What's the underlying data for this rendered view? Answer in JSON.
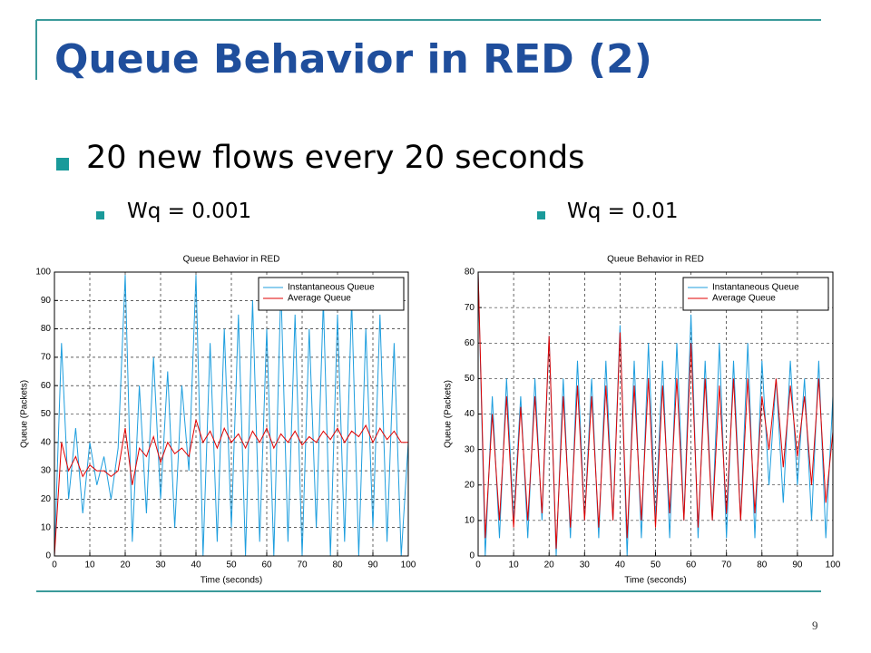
{
  "slide": {
    "title": "Queue Behavior in RED (2)",
    "bullet": "20 new flows every 20 seconds",
    "sub_bullets": [
      "Wq = 0.001",
      "Wq = 0.01"
    ],
    "page_number": "9"
  },
  "chart_data": [
    {
      "type": "line",
      "title": "Queue Behavior in RED",
      "x_label": "Time (seconds)",
      "y_label": "Queue (Packets)",
      "x": [
        0,
        2,
        4,
        6,
        8,
        10,
        12,
        14,
        16,
        18,
        20,
        22,
        24,
        26,
        28,
        30,
        32,
        34,
        36,
        38,
        40,
        42,
        44,
        46,
        48,
        50,
        52,
        54,
        56,
        58,
        60,
        62,
        64,
        66,
        68,
        70,
        72,
        74,
        76,
        78,
        80,
        82,
        84,
        86,
        88,
        90,
        92,
        94,
        96,
        98,
        100
      ],
      "series": [
        {
          "name": "Instantaneous Queue",
          "color": "#1e9ede",
          "values": [
            0,
            75,
            20,
            45,
            15,
            40,
            25,
            35,
            20,
            38,
            99,
            5,
            60,
            15,
            70,
            20,
            65,
            10,
            60,
            30,
            99,
            0,
            75,
            5,
            80,
            10,
            85,
            0,
            90,
            5,
            80,
            0,
            95,
            5,
            85,
            0,
            80,
            10,
            90,
            0,
            85,
            5,
            90,
            0,
            80,
            10,
            85,
            5,
            75,
            0,
            40
          ]
        },
        {
          "name": "Average Queue",
          "color": "#e00000",
          "values": [
            0,
            40,
            30,
            35,
            28,
            32,
            30,
            30,
            28,
            30,
            45,
            25,
            38,
            35,
            42,
            33,
            40,
            36,
            38,
            35,
            48,
            40,
            44,
            38,
            45,
            40,
            43,
            38,
            44,
            40,
            45,
            38,
            43,
            40,
            44,
            39,
            42,
            40,
            44,
            41,
            45,
            40,
            44,
            42,
            46,
            40,
            45,
            41,
            44,
            40,
            40
          ]
        }
      ],
      "xlim": [
        0,
        100
      ],
      "xticks": [
        0,
        10,
        20,
        30,
        40,
        50,
        60,
        70,
        80,
        90,
        100
      ],
      "ylim": [
        0,
        100
      ],
      "yticks": [
        0,
        10,
        20,
        30,
        40,
        50,
        60,
        70,
        80,
        90,
        100
      ],
      "grid": true,
      "legend": "upper-right"
    },
    {
      "type": "line",
      "title": "Queue Behavior in RED",
      "x_label": "Time (seconds)",
      "y_label": "Queue (Packets)",
      "x": [
        0,
        2,
        4,
        6,
        8,
        10,
        12,
        14,
        16,
        18,
        20,
        22,
        24,
        26,
        28,
        30,
        32,
        34,
        36,
        38,
        40,
        42,
        44,
        46,
        48,
        50,
        52,
        54,
        56,
        58,
        60,
        62,
        64,
        66,
        68,
        70,
        72,
        74,
        76,
        78,
        80,
        82,
        84,
        86,
        88,
        90,
        92,
        94,
        96,
        98,
        100
      ],
      "series": [
        {
          "name": "Instantaneous Queue",
          "color": "#1e9ede",
          "values": [
            80,
            0,
            45,
            5,
            50,
            10,
            45,
            5,
            50,
            10,
            62,
            0,
            50,
            5,
            55,
            10,
            50,
            5,
            55,
            10,
            65,
            0,
            55,
            5,
            60,
            10,
            55,
            5,
            60,
            10,
            68,
            5,
            55,
            10,
            60,
            5,
            55,
            10,
            60,
            5,
            55,
            20,
            50,
            15,
            55,
            20,
            50,
            10,
            55,
            5,
            45
          ]
        },
        {
          "name": "Average Queue",
          "color": "#e00000",
          "values": [
            80,
            5,
            40,
            10,
            45,
            8,
            42,
            10,
            45,
            12,
            62,
            2,
            45,
            8,
            48,
            10,
            45,
            8,
            48,
            10,
            63,
            5,
            48,
            10,
            50,
            8,
            48,
            12,
            50,
            10,
            60,
            8,
            50,
            10,
            48,
            12,
            50,
            10,
            50,
            12,
            45,
            30,
            50,
            25,
            48,
            28,
            45,
            20,
            50,
            15,
            35
          ]
        }
      ],
      "xlim": [
        0,
        100
      ],
      "xticks": [
        0,
        10,
        20,
        30,
        40,
        50,
        60,
        70,
        80,
        90,
        100
      ],
      "ylim": [
        0,
        80
      ],
      "yticks": [
        0,
        10,
        20,
        30,
        40,
        50,
        60,
        70,
        80
      ],
      "grid": true,
      "legend": "upper-right"
    }
  ]
}
